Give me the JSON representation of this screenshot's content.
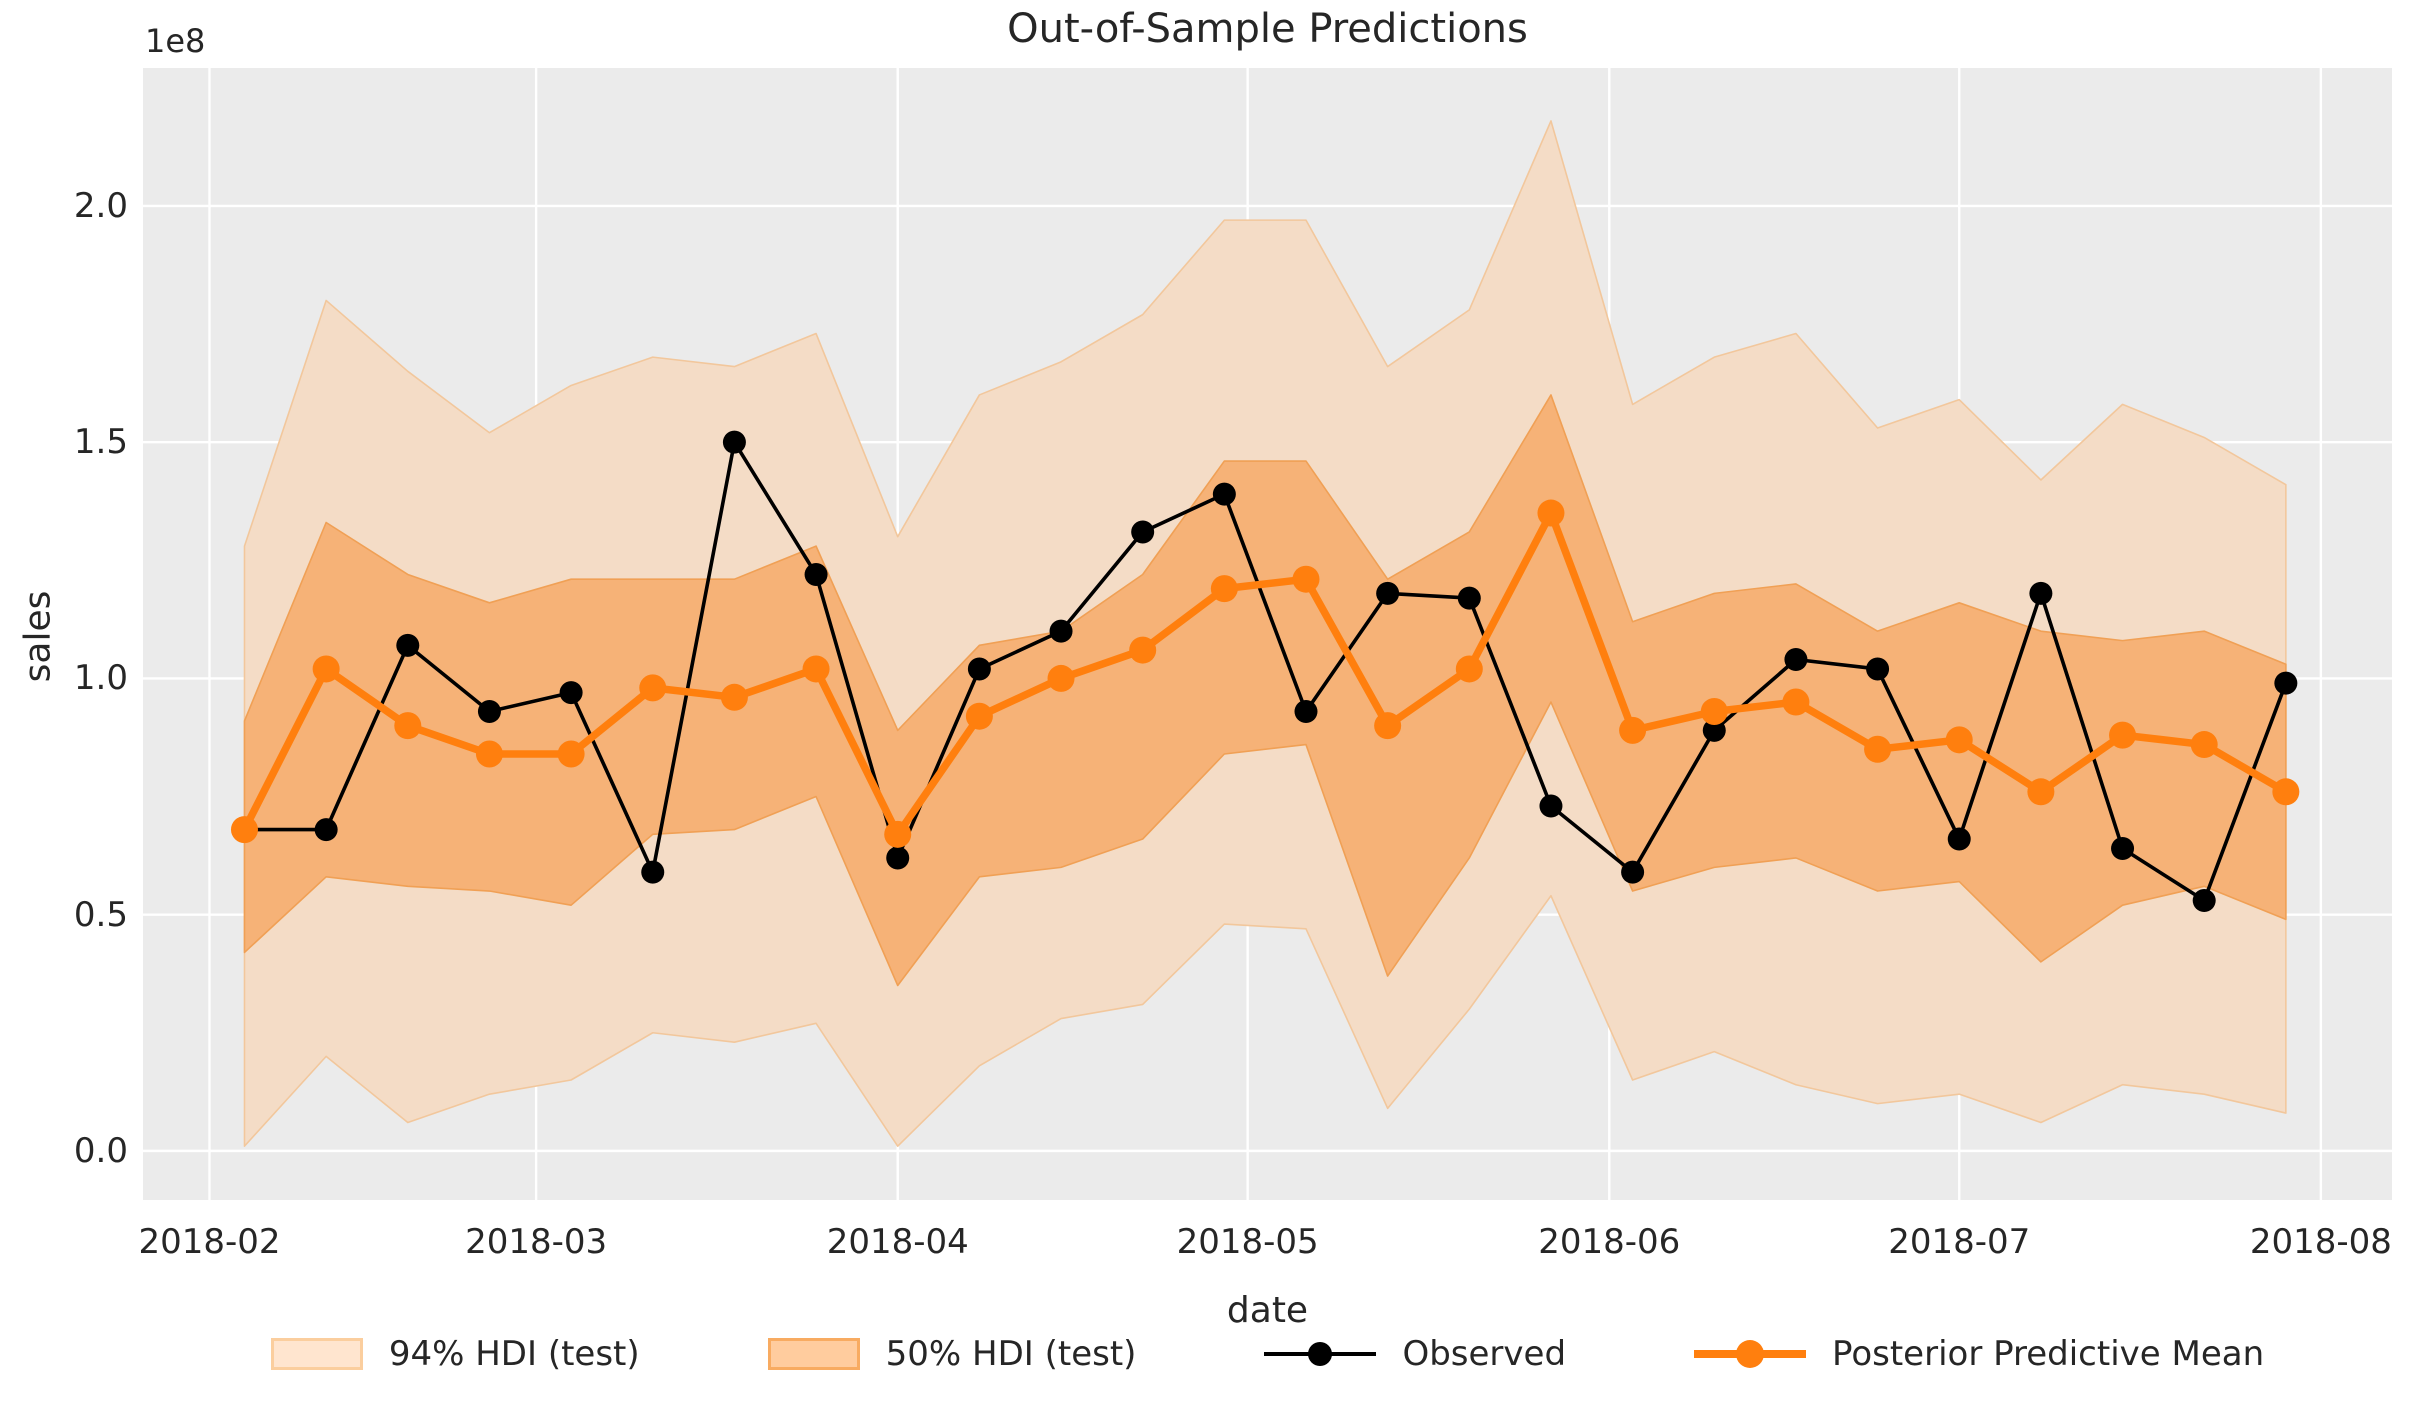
{
  "chart_data": {
    "type": "line",
    "title": "Out-of-Sample Predictions",
    "xlabel": "date",
    "ylabel": "sales",
    "y_offset_label": "1e8",
    "grid": true,
    "y_ticks": [
      0.0,
      0.5,
      1.0,
      1.5,
      2.0
    ],
    "y_tick_labels": [
      "0.0",
      "0.5",
      "1.0",
      "1.5",
      "2.0"
    ],
    "ylim": [
      -0.104,
      2.292
    ],
    "x_tick_labels": [
      "2018-02",
      "2018-03",
      "2018-04",
      "2018-05",
      "2018-06",
      "2018-07",
      "2018-08"
    ],
    "x_tick_day_offsets": [
      0,
      28,
      59,
      89,
      120,
      150,
      181
    ],
    "xlim_day_offsets": [
      -5.7,
      187.1
    ],
    "point_day_offsets_start": 3,
    "point_day_interval": 7,
    "dates": [
      "2018-02-04",
      "2018-02-11",
      "2018-02-18",
      "2018-02-25",
      "2018-03-04",
      "2018-03-11",
      "2018-03-18",
      "2018-03-25",
      "2018-04-01",
      "2018-04-08",
      "2018-04-15",
      "2018-04-22",
      "2018-04-29",
      "2018-05-06",
      "2018-05-13",
      "2018-05-20",
      "2018-05-27",
      "2018-06-03",
      "2018-06-10",
      "2018-06-17",
      "2018-06-24",
      "2018-07-01",
      "2018-07-08",
      "2018-07-15",
      "2018-07-22",
      "2018-07-29"
    ],
    "value_unit": "1e8",
    "series": [
      {
        "name": "Observed",
        "color": "#000000",
        "values": [
          0.68,
          0.68,
          1.07,
          0.93,
          0.97,
          0.59,
          1.5,
          1.22,
          0.62,
          1.02,
          1.1,
          1.31,
          1.39,
          0.93,
          1.18,
          1.17,
          0.73,
          0.59,
          0.89,
          1.04,
          1.02,
          0.66,
          1.18,
          0.64,
          0.53,
          0.99
        ]
      },
      {
        "name": "Posterior Predictive Mean",
        "color": "#ff7f0e",
        "values": [
          0.68,
          1.02,
          0.9,
          0.84,
          0.84,
          0.98,
          0.96,
          1.02,
          0.67,
          0.92,
          1.0,
          1.06,
          1.19,
          1.21,
          0.9,
          1.02,
          1.35,
          0.89,
          0.93,
          0.95,
          0.85,
          0.87,
          0.76,
          0.88,
          0.86,
          0.76
        ]
      }
    ],
    "bands": [
      {
        "name": "94% HDI (test)",
        "fill": "#f4dcc6",
        "edge": "#f2c79c",
        "legend_fill": "#ffe5cf",
        "legend_edge": "#fbce9e",
        "lower": [
          0.01,
          0.2,
          0.06,
          0.12,
          0.15,
          0.25,
          0.23,
          0.27,
          0.01,
          0.18,
          0.28,
          0.31,
          0.48,
          0.47,
          0.09,
          0.3,
          0.54,
          0.15,
          0.21,
          0.14,
          0.1,
          0.12,
          0.06,
          0.14,
          0.12,
          0.08
        ],
        "upper": [
          1.28,
          1.8,
          1.65,
          1.52,
          1.62,
          1.68,
          1.66,
          1.73,
          1.3,
          1.6,
          1.67,
          1.77,
          1.97,
          1.97,
          1.66,
          1.78,
          2.18,
          1.58,
          1.68,
          1.73,
          1.53,
          1.59,
          1.42,
          1.58,
          1.51,
          1.41
        ]
      },
      {
        "name": "50% HDI (test)",
        "fill": "#f6b277",
        "edge": "#f0a055",
        "legend_fill": "#ffcc9e",
        "legend_edge": "#f8ab61",
        "lower": [
          0.42,
          0.58,
          0.56,
          0.55,
          0.52,
          0.67,
          0.68,
          0.75,
          0.35,
          0.58,
          0.6,
          0.66,
          0.84,
          0.86,
          0.37,
          0.62,
          0.95,
          0.55,
          0.6,
          0.62,
          0.55,
          0.57,
          0.4,
          0.52,
          0.56,
          0.49
        ],
        "upper": [
          0.91,
          1.33,
          1.22,
          1.16,
          1.21,
          1.21,
          1.21,
          1.28,
          0.89,
          1.07,
          1.1,
          1.22,
          1.46,
          1.46,
          1.21,
          1.31,
          1.6,
          1.12,
          1.18,
          1.2,
          1.1,
          1.16,
          1.1,
          1.08,
          1.1,
          1.03
        ]
      }
    ],
    "legend_entries": [
      {
        "kind": "band",
        "label": "94% HDI (test)"
      },
      {
        "kind": "band",
        "label": "50% HDI (test)"
      },
      {
        "kind": "line",
        "label": "Observed"
      },
      {
        "kind": "line",
        "label": "Posterior Predictive Mean"
      }
    ],
    "legend_position": "below",
    "colors": {
      "plot_background": "#ebebeb",
      "gridline": "#ffffff",
      "text": "#262626",
      "observed": "#000000",
      "posterior_mean": "#ff7f0e"
    }
  }
}
